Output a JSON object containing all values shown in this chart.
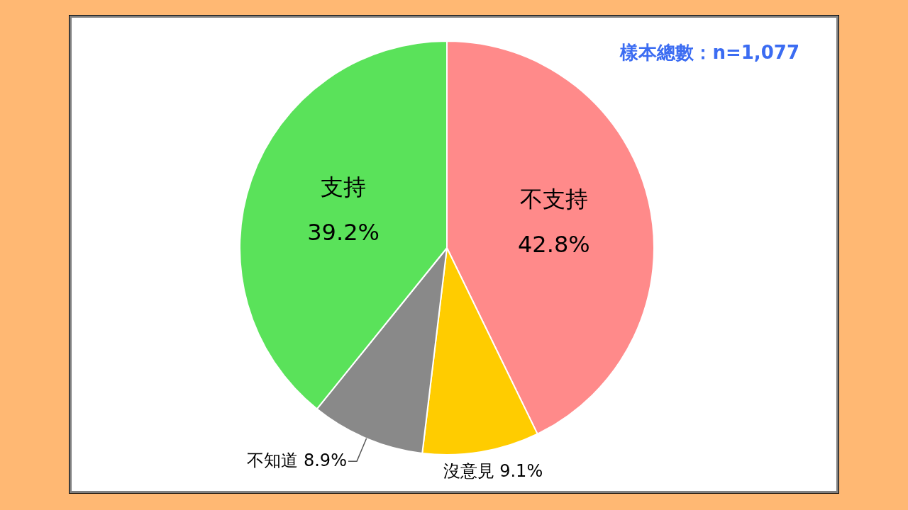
{
  "chart_data": {
    "type": "pie",
    "categories": [
      "不支持",
      "沒意見",
      "不知道",
      "支持"
    ],
    "values": [
      42.8,
      9.1,
      8.9,
      39.2
    ],
    "colors": [
      "#ff8a8a",
      "#ffcc00",
      "#898989",
      "#5ae25a"
    ],
    "value_labels": [
      "42.8%",
      "9.1%",
      "8.9%",
      "39.2%"
    ],
    "annotations": [
      "樣本總數：n=1,077"
    ]
  }
}
